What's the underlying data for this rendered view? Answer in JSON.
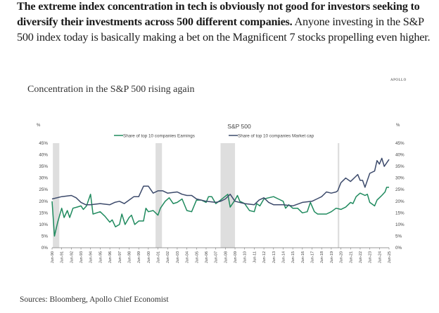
{
  "article": {
    "bold_text": "The extreme index concentration in tech is obviously not good for investors seeking to diversify their investments across 500 different companies.",
    "body_text": " Anyone investing in the S&P 500 index today is basically making a bet on the Magnificent 7 stocks propelling even higher."
  },
  "logo_text": "APOLLO",
  "sources": "Sources: Bloomberg, Apollo Chief Economist",
  "chart_data": {
    "type": "line",
    "title": "Concentration in the S&P 500 rising again",
    "subtitle": "S&P 500",
    "ylabel_left": "%",
    "ylabel_right": "%",
    "ylim": [
      0,
      45
    ],
    "yticks": [
      "0%",
      "5%",
      "10%",
      "15%",
      "20%",
      "25%",
      "30%",
      "35%",
      "40%",
      "45%"
    ],
    "xlim": [
      "1990-06",
      "2025-06"
    ],
    "xticks": [
      "Jun-90",
      "Jun-91",
      "Jun-92",
      "Jun-93",
      "Jun-94",
      "Jun-95",
      "Jun-96",
      "Jun-97",
      "Jun-98",
      "Jun-99",
      "Jun-00",
      "Jun-01",
      "Jun-02",
      "Jun-03",
      "Jun-04",
      "Jun-05",
      "Jun-06",
      "Jun-07",
      "Jun-08",
      "Jun-09",
      "Jun-10",
      "Jun-11",
      "Jun-12",
      "Jun-13",
      "Jun-14",
      "Jun-15",
      "Jun-16",
      "Jun-17",
      "Jun-18",
      "Jun-19",
      "Jun-20",
      "Jun-21",
      "Jun-22",
      "Jun-23",
      "Jun-24",
      "Jun-25"
    ],
    "grid": false,
    "legend_placement": "top",
    "shaded_periods": [
      [
        "1990-07",
        "1991-03"
      ],
      [
        "2001-03",
        "2001-11"
      ],
      [
        "2007-12",
        "2009-06"
      ],
      [
        "2020-02",
        "2020-04"
      ]
    ],
    "shade_color": "#dedede",
    "series": [
      {
        "name": "Share of top 10 companies Earnings",
        "color": "#1f8a5e",
        "points": [
          [
            "1990-06",
            20
          ],
          [
            "1990-09",
            5
          ],
          [
            "1991-01",
            11
          ],
          [
            "1991-06",
            17
          ],
          [
            "1991-09",
            13
          ],
          [
            "1992-01",
            16
          ],
          [
            "1992-04",
            13
          ],
          [
            "1992-08",
            17
          ],
          [
            "1993-01",
            17.5
          ],
          [
            "1993-06",
            18
          ],
          [
            "1993-09",
            16.5
          ],
          [
            "1994-01",
            18
          ],
          [
            "1994-06",
            23
          ],
          [
            "1994-09",
            14.5
          ],
          [
            "1995-06",
            15.5
          ],
          [
            "1995-12",
            13.5
          ],
          [
            "1996-06",
            11
          ],
          [
            "1996-09",
            12
          ],
          [
            "1997-01",
            9
          ],
          [
            "1997-06",
            10
          ],
          [
            "1997-09",
            14.5
          ],
          [
            "1998-01",
            10
          ],
          [
            "1998-06",
            13
          ],
          [
            "1998-09",
            14
          ],
          [
            "1999-01",
            10
          ],
          [
            "1999-06",
            11.5
          ],
          [
            "1999-12",
            11.5
          ],
          [
            "2000-03",
            17
          ],
          [
            "2000-06",
            15.5
          ],
          [
            "2000-12",
            16
          ],
          [
            "2001-06",
            14
          ],
          [
            "2001-09",
            17
          ],
          [
            "2002-03",
            20
          ],
          [
            "2002-08",
            21.5
          ],
          [
            "2003-01",
            19
          ],
          [
            "2003-06",
            19.5
          ],
          [
            "2003-12",
            21
          ],
          [
            "2004-06",
            16
          ],
          [
            "2004-12",
            15.5
          ],
          [
            "2005-06",
            20.5
          ],
          [
            "2005-12",
            20.5
          ],
          [
            "2006-06",
            19.5
          ],
          [
            "2006-09",
            22
          ],
          [
            "2007-01",
            22
          ],
          [
            "2007-06",
            19
          ],
          [
            "2007-12",
            20.5
          ],
          [
            "2008-09",
            23
          ],
          [
            "2008-12",
            17.5
          ],
          [
            "2009-06",
            20.5
          ],
          [
            "2009-09",
            22.5
          ],
          [
            "2009-12",
            20
          ],
          [
            "2010-06",
            19
          ],
          [
            "2010-12",
            16
          ],
          [
            "2011-06",
            15.5
          ],
          [
            "2011-09",
            19
          ],
          [
            "2012-01",
            18
          ],
          [
            "2012-06",
            21
          ],
          [
            "2012-12",
            21.5
          ],
          [
            "2013-06",
            22
          ],
          [
            "2013-12",
            21
          ],
          [
            "2014-06",
            20
          ],
          [
            "2014-09",
            17
          ],
          [
            "2015-01",
            18.5
          ],
          [
            "2015-06",
            17
          ],
          [
            "2015-12",
            17
          ],
          [
            "2016-06",
            15
          ],
          [
            "2016-12",
            15.5
          ],
          [
            "2017-04",
            19.5
          ],
          [
            "2017-09",
            15.5
          ],
          [
            "2018-01",
            14.5
          ],
          [
            "2018-06",
            14.5
          ],
          [
            "2018-12",
            14.5
          ],
          [
            "2019-06",
            15.5
          ],
          [
            "2019-12",
            17
          ],
          [
            "2020-06",
            16.5
          ],
          [
            "2020-12",
            17.5
          ],
          [
            "2021-06",
            19.5
          ],
          [
            "2021-09",
            19
          ],
          [
            "2022-01",
            22
          ],
          [
            "2022-06",
            23.5
          ],
          [
            "2022-12",
            22.5
          ],
          [
            "2023-03",
            23
          ],
          [
            "2023-06",
            19.5
          ],
          [
            "2023-12",
            18
          ],
          [
            "2024-03",
            20.5
          ],
          [
            "2024-06",
            21.5
          ],
          [
            "2024-09",
            22.5
          ],
          [
            "2025-01",
            24
          ],
          [
            "2025-03",
            26
          ],
          [
            "2025-06",
            26
          ]
        ]
      },
      {
        "name": "Share of top 10 companies Market cap",
        "color": "#3c4a6b",
        "points": [
          [
            "1990-06",
            21
          ],
          [
            "1991-06",
            22
          ],
          [
            "1992-06",
            22.5
          ],
          [
            "1992-12",
            21.5
          ],
          [
            "1993-06",
            19.5
          ],
          [
            "1993-12",
            18.5
          ],
          [
            "1994-06",
            18.5
          ],
          [
            "1995-06",
            19
          ],
          [
            "1996-06",
            18.5
          ],
          [
            "1996-12",
            19.5
          ],
          [
            "1997-06",
            20
          ],
          [
            "1997-12",
            19
          ],
          [
            "1998-06",
            20.5
          ],
          [
            "1998-12",
            22
          ],
          [
            "1999-06",
            22
          ],
          [
            "1999-12",
            26.5
          ],
          [
            "2000-06",
            26.5
          ],
          [
            "2000-12",
            23.5
          ],
          [
            "2001-06",
            24.5
          ],
          [
            "2001-12",
            24.5
          ],
          [
            "2002-06",
            23.5
          ],
          [
            "2003-06",
            24
          ],
          [
            "2003-12",
            23
          ],
          [
            "2004-06",
            22.5
          ],
          [
            "2004-12",
            22.5
          ],
          [
            "2005-06",
            21
          ],
          [
            "2006-06",
            20
          ],
          [
            "2007-06",
            19.5
          ],
          [
            "2007-12",
            20
          ],
          [
            "2008-06",
            21
          ],
          [
            "2008-12",
            23
          ],
          [
            "2009-06",
            20
          ],
          [
            "2010-06",
            19
          ],
          [
            "2011-06",
            18.5
          ],
          [
            "2011-12",
            20.5
          ],
          [
            "2012-06",
            21.5
          ],
          [
            "2012-12",
            19.5
          ],
          [
            "2013-06",
            18.5
          ],
          [
            "2014-06",
            18.5
          ],
          [
            "2015-06",
            18
          ],
          [
            "2016-06",
            19.5
          ],
          [
            "2017-06",
            20
          ],
          [
            "2017-12",
            21
          ],
          [
            "2018-06",
            22
          ],
          [
            "2018-12",
            24
          ],
          [
            "2019-06",
            23.5
          ],
          [
            "2019-12",
            24
          ],
          [
            "2020-02",
            24.5
          ],
          [
            "2020-06",
            28
          ],
          [
            "2020-12",
            30
          ],
          [
            "2021-06",
            28.5
          ],
          [
            "2021-12",
            30.5
          ],
          [
            "2022-03",
            31.5
          ],
          [
            "2022-06",
            29
          ],
          [
            "2022-09",
            29
          ],
          [
            "2022-12",
            26
          ],
          [
            "2023-06",
            32
          ],
          [
            "2023-12",
            33
          ],
          [
            "2024-03",
            37.5
          ],
          [
            "2024-06",
            36
          ],
          [
            "2024-09",
            38.5
          ],
          [
            "2024-12",
            35
          ],
          [
            "2025-06",
            38
          ]
        ]
      }
    ]
  }
}
